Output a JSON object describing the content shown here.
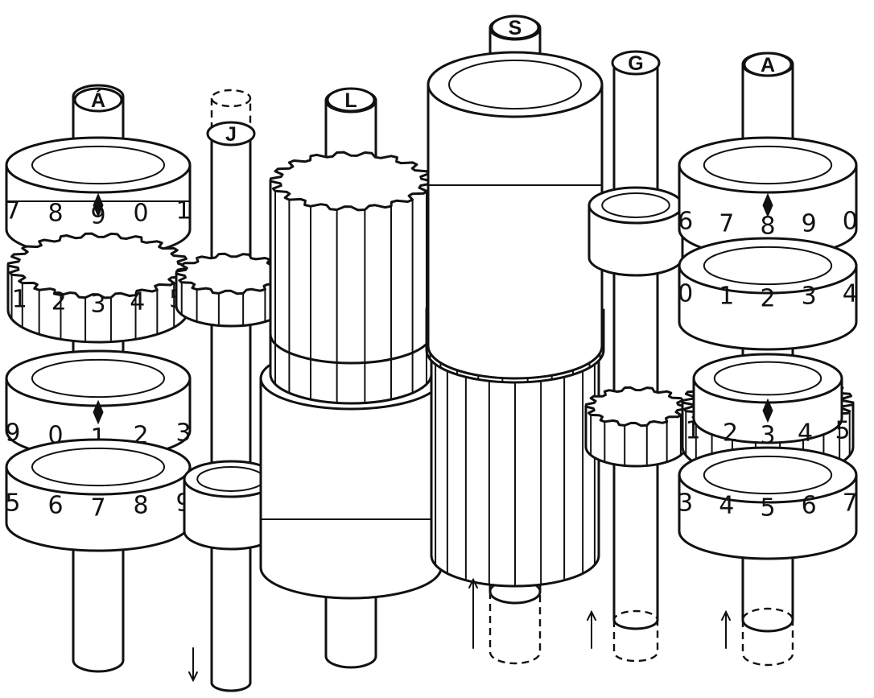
{
  "shaft_labels": {
    "a_prime": "Á",
    "j": "J",
    "l": "L",
    "s": "S",
    "g": "G",
    "a": "A"
  },
  "left_register": {
    "upper_wheel_digits": [
      "7",
      "8",
      "9",
      "0",
      "1"
    ],
    "middle_wheel_digits": [
      "1",
      "2",
      "3",
      "4",
      "5"
    ],
    "lower_wheel_digits": [
      "9",
      "0",
      "1",
      "2",
      "3"
    ],
    "bottom_wheel_digits": [
      "5",
      "6",
      "7",
      "8",
      "9"
    ]
  },
  "right_register": {
    "upper_wheel_digits": [
      "6",
      "7",
      "8",
      "9",
      "0"
    ],
    "middle_wheel_digits": [
      "0",
      "1",
      "2",
      "3",
      "4"
    ],
    "lower_wheel_digits": [
      "1",
      "2",
      "3",
      "4",
      "5"
    ],
    "bottom_wheel_digits": [
      "3",
      "4",
      "5",
      "6",
      "7"
    ]
  },
  "motion_arrows": [
    {
      "shaft": "J",
      "direction": "down"
    },
    {
      "shaft": "S",
      "direction": "up"
    },
    {
      "shaft": "G",
      "direction": "up"
    },
    {
      "shaft": "A",
      "direction": "up"
    }
  ]
}
